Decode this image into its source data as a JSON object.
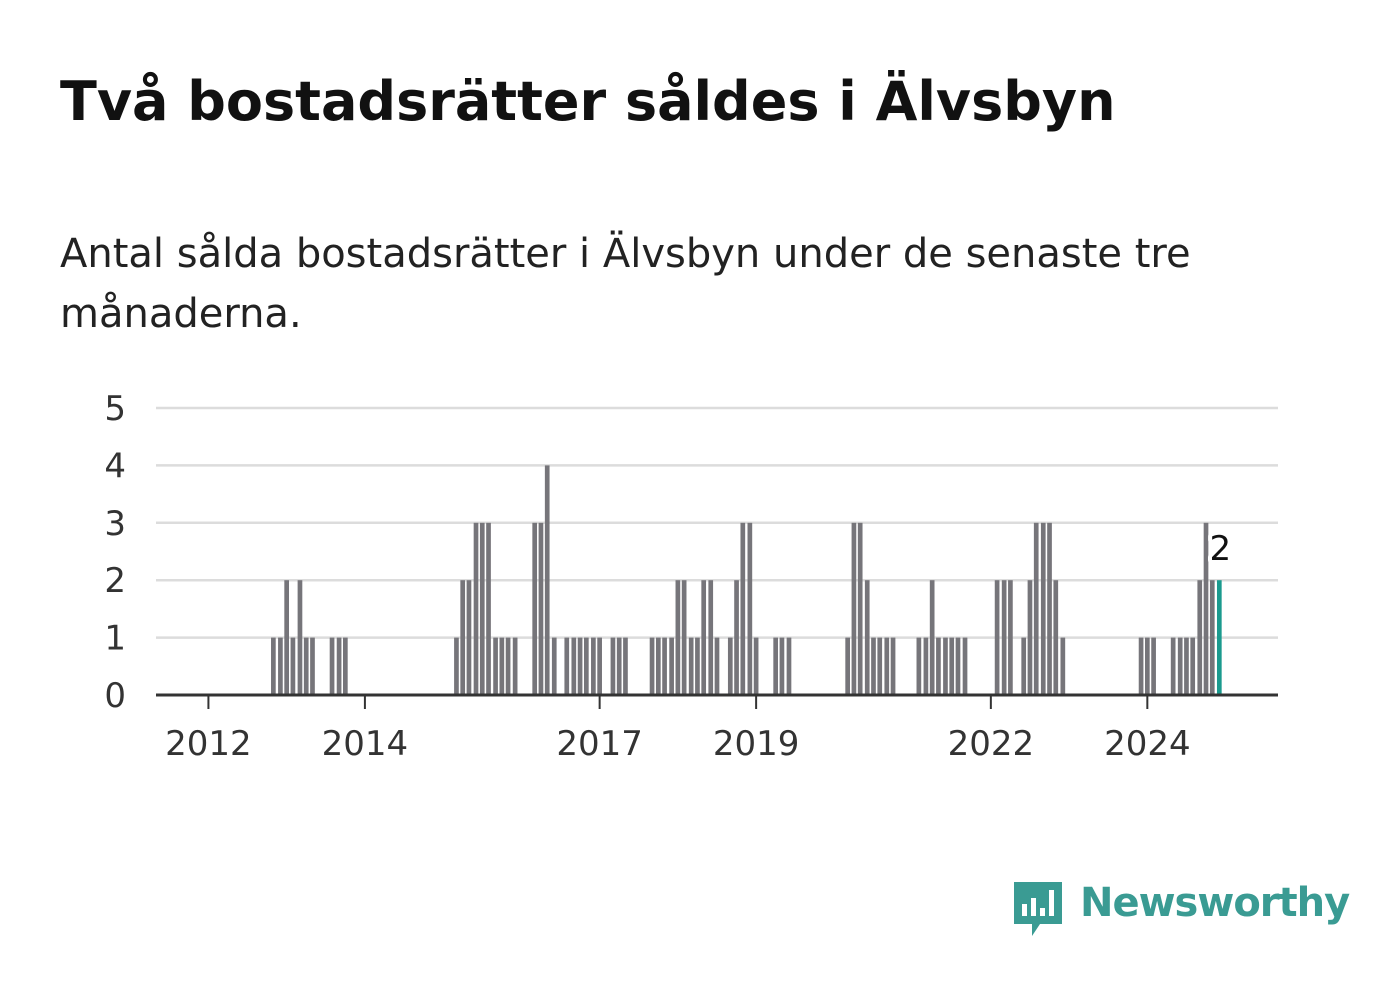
{
  "title": "Två bostadsrätter såldes i Älvsbyn",
  "subtitle": "Antal sålda bostadsrätter i Älvsbyn under de senaste tre månaderna.",
  "brand": {
    "name": "Newsworthy",
    "color": "#3a9b93",
    "icon": "newsworthy-chat-bars-icon"
  },
  "colors": {
    "bar": "#76757a",
    "highlight": "#1a9a8e",
    "grid": "#dcdcdc",
    "axis": "#333333"
  },
  "chart_data": {
    "type": "bar",
    "ylim": [
      0,
      5
    ],
    "yticks": [
      0,
      1,
      2,
      3,
      4,
      5
    ],
    "xticks": [
      {
        "label": "2012",
        "year": 2012.0
      },
      {
        "label": "2014",
        "year": 2014.0
      },
      {
        "label": "2017",
        "year": 2017.0
      },
      {
        "label": "2019",
        "year": 2019.0
      },
      {
        "label": "2022",
        "year": 2022.0
      },
      {
        "label": "2024",
        "year": 2024.0
      }
    ],
    "x_range": [
      2011.33,
      2025.67
    ],
    "bars": [
      {
        "t": 2012.83,
        "v": 1
      },
      {
        "t": 2012.92,
        "v": 1
      },
      {
        "t": 2013.0,
        "v": 2
      },
      {
        "t": 2013.08,
        "v": 1
      },
      {
        "t": 2013.17,
        "v": 2
      },
      {
        "t": 2013.25,
        "v": 1
      },
      {
        "t": 2013.33,
        "v": 1
      },
      {
        "t": 2013.58,
        "v": 1
      },
      {
        "t": 2013.67,
        "v": 1
      },
      {
        "t": 2013.75,
        "v": 1
      },
      {
        "t": 2015.17,
        "v": 1
      },
      {
        "t": 2015.25,
        "v": 2
      },
      {
        "t": 2015.33,
        "v": 2
      },
      {
        "t": 2015.42,
        "v": 3
      },
      {
        "t": 2015.5,
        "v": 3
      },
      {
        "t": 2015.58,
        "v": 3
      },
      {
        "t": 2015.67,
        "v": 1
      },
      {
        "t": 2015.75,
        "v": 1
      },
      {
        "t": 2015.83,
        "v": 1
      },
      {
        "t": 2015.92,
        "v": 1
      },
      {
        "t": 2016.17,
        "v": 3
      },
      {
        "t": 2016.25,
        "v": 3
      },
      {
        "t": 2016.33,
        "v": 4
      },
      {
        "t": 2016.42,
        "v": 1
      },
      {
        "t": 2016.58,
        "v": 1
      },
      {
        "t": 2016.67,
        "v": 1
      },
      {
        "t": 2016.75,
        "v": 1
      },
      {
        "t": 2016.83,
        "v": 1
      },
      {
        "t": 2016.92,
        "v": 1
      },
      {
        "t": 2017.0,
        "v": 1
      },
      {
        "t": 2017.17,
        "v": 1
      },
      {
        "t": 2017.25,
        "v": 1
      },
      {
        "t": 2017.33,
        "v": 1
      },
      {
        "t": 2017.67,
        "v": 1
      },
      {
        "t": 2017.75,
        "v": 1
      },
      {
        "t": 2017.83,
        "v": 1
      },
      {
        "t": 2017.92,
        "v": 1
      },
      {
        "t": 2018.0,
        "v": 2
      },
      {
        "t": 2018.08,
        "v": 2
      },
      {
        "t": 2018.17,
        "v": 1
      },
      {
        "t": 2018.25,
        "v": 1
      },
      {
        "t": 2018.33,
        "v": 2
      },
      {
        "t": 2018.42,
        "v": 2
      },
      {
        "t": 2018.5,
        "v": 1
      },
      {
        "t": 2018.67,
        "v": 1
      },
      {
        "t": 2018.75,
        "v": 2
      },
      {
        "t": 2018.83,
        "v": 3
      },
      {
        "t": 2018.92,
        "v": 3
      },
      {
        "t": 2019.0,
        "v": 1
      },
      {
        "t": 2019.25,
        "v": 1
      },
      {
        "t": 2019.33,
        "v": 1
      },
      {
        "t": 2019.42,
        "v": 1
      },
      {
        "t": 2020.17,
        "v": 1
      },
      {
        "t": 2020.25,
        "v": 3
      },
      {
        "t": 2020.33,
        "v": 3
      },
      {
        "t": 2020.42,
        "v": 2
      },
      {
        "t": 2020.5,
        "v": 1
      },
      {
        "t": 2020.58,
        "v": 1
      },
      {
        "t": 2020.67,
        "v": 1
      },
      {
        "t": 2020.75,
        "v": 1
      },
      {
        "t": 2021.08,
        "v": 1
      },
      {
        "t": 2021.17,
        "v": 1
      },
      {
        "t": 2021.25,
        "v": 2
      },
      {
        "t": 2021.33,
        "v": 1
      },
      {
        "t": 2021.42,
        "v": 1
      },
      {
        "t": 2021.5,
        "v": 1
      },
      {
        "t": 2021.58,
        "v": 1
      },
      {
        "t": 2021.67,
        "v": 1
      },
      {
        "t": 2022.08,
        "v": 2
      },
      {
        "t": 2022.17,
        "v": 2
      },
      {
        "t": 2022.25,
        "v": 2
      },
      {
        "t": 2022.42,
        "v": 1
      },
      {
        "t": 2022.5,
        "v": 2
      },
      {
        "t": 2022.58,
        "v": 3
      },
      {
        "t": 2022.67,
        "v": 3
      },
      {
        "t": 2022.75,
        "v": 3
      },
      {
        "t": 2022.83,
        "v": 2
      },
      {
        "t": 2022.92,
        "v": 1
      },
      {
        "t": 2023.92,
        "v": 1
      },
      {
        "t": 2024.0,
        "v": 1
      },
      {
        "t": 2024.08,
        "v": 1
      },
      {
        "t": 2024.33,
        "v": 1
      },
      {
        "t": 2024.42,
        "v": 1
      },
      {
        "t": 2024.5,
        "v": 1
      },
      {
        "t": 2024.58,
        "v": 1
      },
      {
        "t": 2024.67,
        "v": 2
      },
      {
        "t": 2024.75,
        "v": 3
      },
      {
        "t": 2024.83,
        "v": 2
      },
      {
        "t": 2024.92,
        "v": 2,
        "highlight": true
      }
    ],
    "annotation": {
      "text": "2"
    }
  }
}
